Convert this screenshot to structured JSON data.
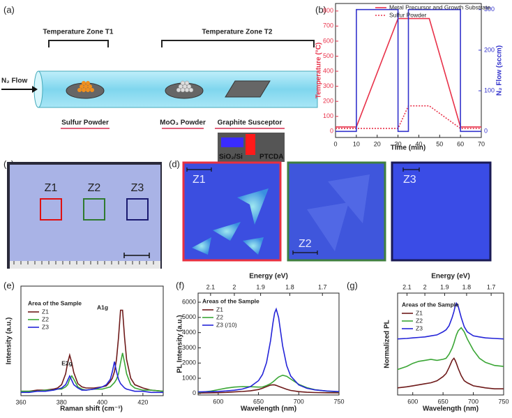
{
  "diagram": {
    "label": "(a)",
    "zone_t1": "Temperature Zone T1",
    "zone_t2": "Temperature Zone T2",
    "flow": "N₂ Flow",
    "sulfur": "Sulfur Powder",
    "moo3": "MoO₃ Powder",
    "susceptor": "Graphite Susceptor",
    "substrate": "SiO₂/Si",
    "ptcda": "PTCDA"
  },
  "images": {
    "c": {
      "label": "(c)",
      "zones": [
        "Z1",
        "Z2",
        "Z3"
      ]
    },
    "d": {
      "label": "(d)",
      "zones": [
        "Z1",
        "Z2",
        "Z3"
      ]
    }
  },
  "chart_data": [
    {
      "type": "line",
      "label": "(b)",
      "xlabel": "Time (min)",
      "ylabel": "Temperature (°C)",
      "y2label": "N₂ Flow (sccm)",
      "xlim": [
        0,
        70
      ],
      "xticks": [
        0,
        10,
        20,
        30,
        40,
        50,
        60,
        70
      ],
      "ylim": [
        -40,
        850
      ],
      "yticks": [
        0,
        100,
        200,
        300,
        400,
        500,
        600,
        700,
        800
      ],
      "y2lim": [
        -15,
        315
      ],
      "y2ticks": [
        0,
        100,
        200,
        300
      ],
      "legend": "upper right",
      "series": [
        {
          "name": "Metal Precursor and Growth Substrate",
          "color": "#e8324a",
          "x": [
            0,
            10,
            30,
            45,
            60,
            70
          ],
          "values": [
            30,
            30,
            750,
            750,
            30,
            30
          ]
        },
        {
          "name": "Sulfur Powder",
          "color": "#e8324a",
          "dash": true,
          "x": [
            0,
            30,
            35,
            45,
            60,
            70
          ],
          "values": [
            20,
            20,
            170,
            170,
            20,
            20
          ]
        },
        {
          "color": "#3333cc",
          "axis": "y2",
          "x": [
            0,
            10,
            10,
            30,
            30,
            35,
            35,
            60,
            60,
            70
          ],
          "values": [
            0,
            0,
            300,
            300,
            0,
            0,
            300,
            300,
            0,
            0
          ]
        }
      ]
    },
    {
      "type": "line",
      "label": "(e)",
      "xlabel": "Raman shift (cm⁻¹)",
      "ylabel": "Intensity (a.u.)",
      "xlim": [
        360,
        430
      ],
      "xticks": [
        360,
        380,
        400,
        420
      ],
      "ylim": [
        0,
        100
      ],
      "legend": "upper left",
      "legend_title": "Area of the Sample",
      "annotations": [
        "E2g",
        "A1g"
      ],
      "x": [
        360,
        364,
        368,
        372,
        376,
        378,
        380,
        382,
        383,
        384,
        385,
        386,
        388,
        390,
        392,
        396,
        400,
        402,
        404,
        405,
        406,
        407,
        408,
        409,
        410,
        411,
        412,
        414,
        416,
        420,
        424,
        430
      ],
      "series": [
        {
          "name": "Z1",
          "color": "#6e1a1a",
          "values": [
            4,
            4,
            5,
            5,
            6,
            7,
            10,
            20,
            30,
            37,
            30,
            21,
            11,
            8,
            7,
            7,
            8,
            9,
            13,
            16,
            22,
            33,
            53,
            78,
            78,
            53,
            33,
            16,
            10,
            7,
            5,
            4
          ]
        },
        {
          "name": "Z2",
          "color": "#3aa635",
          "values": [
            4,
            4,
            4,
            5,
            5,
            6,
            6,
            8,
            10,
            15,
            18,
            15,
            8,
            6,
            5,
            6,
            6,
            7,
            8,
            10,
            12,
            15,
            20,
            30,
            39,
            30,
            20,
            10,
            7,
            5,
            5,
            4
          ]
        },
        {
          "name": "Z3",
          "color": "#2424d8",
          "values": [
            3,
            3,
            4,
            4,
            5,
            6,
            7,
            10,
            14,
            18,
            14,
            10,
            7,
            5,
            5,
            6,
            8,
            10,
            15,
            22,
            31,
            22,
            15,
            11,
            9,
            7,
            6,
            5,
            4,
            4,
            3,
            3
          ]
        }
      ]
    },
    {
      "type": "line",
      "label": "(f)",
      "xlabel": "Wavelength (nm)",
      "ylabel": "PL Intensity (a.u.)",
      "x2label": "Energy (eV)",
      "xlim": [
        575,
        750
      ],
      "xticks": [
        600,
        650,
        700,
        750
      ],
      "x2ticks": [
        2.1,
        2,
        1.9,
        1.8,
        1.7
      ],
      "ylim": [
        -100,
        6600
      ],
      "yticks": [
        0,
        1000,
        2000,
        3000,
        4000,
        5000,
        6000
      ],
      "legend": "upper left",
      "legend_title": "Areas of the Sample",
      "x": [
        575,
        590,
        600,
        610,
        620,
        630,
        640,
        650,
        655,
        660,
        665,
        668,
        670,
        672,
        675,
        680,
        685,
        690,
        700,
        710,
        720,
        735,
        750
      ],
      "series": [
        {
          "name": "Z1",
          "color": "#6e1a1a",
          "values": [
            30,
            40,
            50,
            70,
            100,
            130,
            170,
            260,
            340,
            450,
            550,
            570,
            560,
            530,
            470,
            370,
            270,
            200,
            120,
            80,
            60,
            45,
            40
          ]
        },
        {
          "name": "Z2",
          "color": "#3aa635",
          "values": [
            60,
            150,
            250,
            350,
            420,
            450,
            440,
            420,
            430,
            520,
            650,
            760,
            850,
            950,
            1080,
            1200,
            1130,
            950,
            600,
            380,
            250,
            150,
            100
          ]
        },
        {
          "name": "Z3 (/10)",
          "color": "#2424d8",
          "values": [
            100,
            115,
            135,
            165,
            210,
            290,
            450,
            840,
            1250,
            2030,
            3480,
            4630,
            5290,
            5550,
            5000,
            3120,
            1830,
            1150,
            560,
            340,
            235,
            160,
            120
          ]
        }
      ]
    },
    {
      "type": "line",
      "label": "(g)",
      "xlabel": "Wavelength (nm)",
      "ylabel": "Normalized PL",
      "x2label": "Energy (eV)",
      "xlim": [
        575,
        750
      ],
      "xticks": [
        600,
        650,
        700,
        750
      ],
      "x2ticks": [
        2.1,
        2,
        1.9,
        1.8,
        1.7
      ],
      "ylim": [
        0,
        100
      ],
      "legend": "upper left",
      "legend_title": "Areas of the Sample",
      "x": [
        575,
        590,
        600,
        610,
        620,
        630,
        640,
        650,
        655,
        660,
        665,
        668,
        670,
        672,
        675,
        680,
        685,
        690,
        700,
        710,
        720,
        735,
        750
      ],
      "series": [
        {
          "name": "Z1",
          "color": "#6e1a1a",
          "values": [
            7,
            8,
            9,
            10,
            11,
            12,
            14,
            18,
            21,
            27,
            34,
            36,
            34,
            31,
            26,
            19,
            14,
            12,
            9,
            8,
            7,
            6,
            6
          ]
        },
        {
          "name": "Z2",
          "color": "#3aa635",
          "values": [
            25,
            28,
            31,
            33,
            34,
            35,
            34,
            35,
            36,
            40,
            46,
            51,
            55,
            59,
            63,
            66,
            62,
            55,
            44,
            36,
            32,
            29,
            28
          ]
        },
        {
          "name": "Z3",
          "color": "#2424d8",
          "values": [
            55,
            55.5,
            56,
            56.5,
            57,
            58,
            59,
            62,
            64,
            68,
            76,
            82,
            87,
            90,
            87,
            76,
            67,
            62,
            58,
            57,
            56,
            55.5,
            55
          ]
        }
      ]
    }
  ]
}
